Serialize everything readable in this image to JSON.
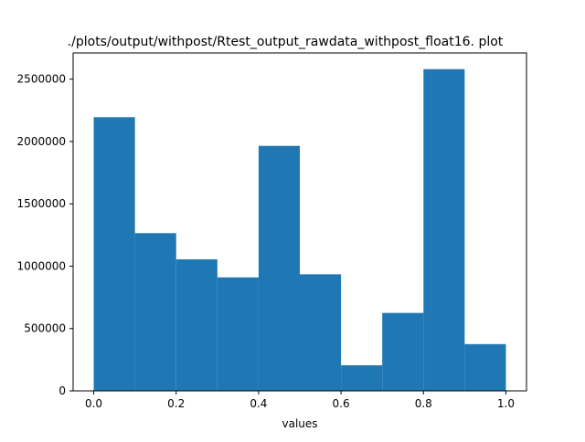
{
  "chart_data": {
    "type": "bar",
    "title": "./plots/output/withpost/Rtest_output_rawdata_withpost_float16. plot",
    "xlabel": "values",
    "ylabel": "",
    "bin_edges": [
      0.0,
      0.1,
      0.2,
      0.3,
      0.4,
      0.5,
      0.6,
      0.7,
      0.8,
      0.9,
      1.0
    ],
    "values": [
      2195000,
      1265000,
      1055000,
      910000,
      1965000,
      935000,
      205000,
      625000,
      2580000,
      375000
    ],
    "xlim": [
      -0.05,
      1.05
    ],
    "ylim": [
      0,
      2710000
    ],
    "xticks": [
      0.0,
      0.2,
      0.4,
      0.6,
      0.8,
      1.0
    ],
    "xtick_labels": [
      "0.0",
      "0.2",
      "0.4",
      "0.6",
      "0.8",
      "1.0"
    ],
    "yticks": [
      0,
      500000,
      1000000,
      1500000,
      2000000,
      2500000
    ],
    "ytick_labels": [
      "0",
      "500000",
      "1000000",
      "1500000",
      "2000000",
      "2500000"
    ],
    "bar_color": "#1f77b4",
    "grid": false,
    "legend": "none"
  }
}
